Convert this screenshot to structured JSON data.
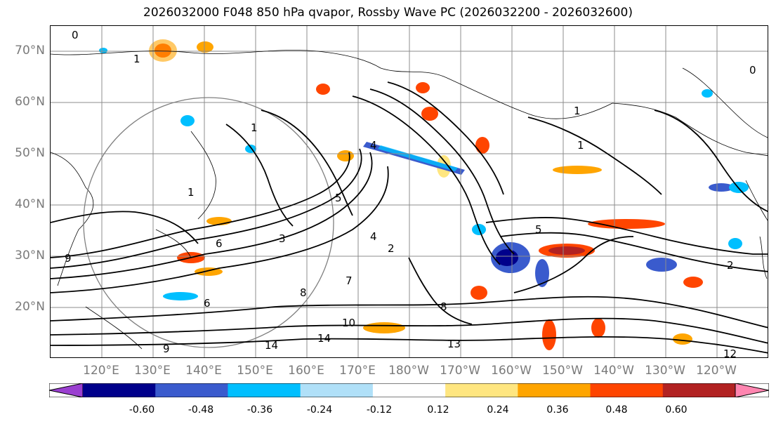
{
  "title": "2026032000 F048 850 hPa qvapor, Rossby Wave PC (2026032200 - 2026032600)",
  "lat_labels": [
    "70°N",
    "60°N",
    "50°N",
    "40°N",
    "30°N",
    "20°N"
  ],
  "lon_labels": [
    "120°E",
    "130°E",
    "140°E",
    "150°E",
    "160°E",
    "170°E",
    "180°W",
    "170°W",
    "160°W",
    "150°W",
    "140°W",
    "130°W",
    "120°W"
  ],
  "contour_labels": [
    "0",
    "0",
    "1",
    "1",
    "1",
    "1",
    "1",
    "2",
    "2",
    "3",
    "4",
    "4",
    "5",
    "5",
    "6",
    "6",
    "7",
    "8",
    "8",
    "9",
    "9",
    "10",
    "12",
    "13",
    "14",
    "14"
  ],
  "colorbar": {
    "ticks": [
      "-0.60",
      "-0.48",
      "-0.36",
      "-0.24",
      "-0.12",
      "0.12",
      "0.24",
      "0.36",
      "0.48",
      "0.60"
    ],
    "colors": [
      "#9a3fd0",
      "#00008b",
      "#3a5bcd",
      "#00bfff",
      "#b0e0f8",
      "#ffffff",
      "#ffe680",
      "#ffa500",
      "#ff4500",
      "#b22222",
      "#ff85b0"
    ]
  },
  "colors": {
    "contour": "#000000",
    "grid": "#8c8c8c",
    "coast": "#000000",
    "tick_label": "#7a7a7a",
    "circle": "#808080"
  }
}
